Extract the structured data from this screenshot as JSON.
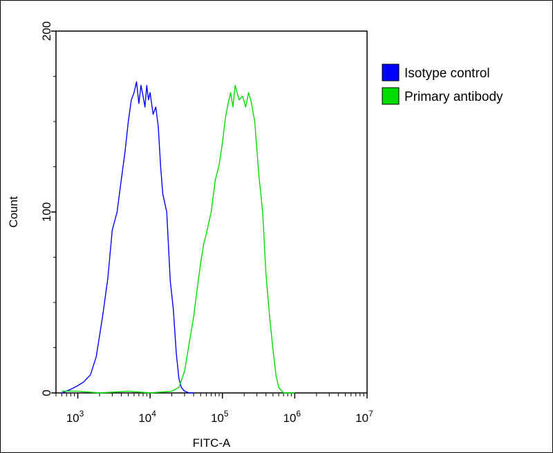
{
  "chart_data": {
    "type": "line",
    "title": "",
    "xlabel": "FITC-A",
    "ylabel": "Count",
    "x_scale": "log",
    "xlim": [
      500,
      10000000
    ],
    "ylim": [
      0,
      200
    ],
    "x_ticks": [
      {
        "value": 1000,
        "base": "10",
        "exp": "3"
      },
      {
        "value": 10000,
        "base": "10",
        "exp": "4"
      },
      {
        "value": 100000,
        "base": "10",
        "exp": "5"
      },
      {
        "value": 1000000,
        "base": "10",
        "exp": "6"
      },
      {
        "value": 10000000,
        "base": "10",
        "exp": "7"
      }
    ],
    "y_ticks": [
      {
        "value": 0,
        "label": "0"
      },
      {
        "value": 100,
        "label": "100"
      },
      {
        "value": 200,
        "label": "200"
      }
    ],
    "grid": false,
    "legend_position": "right",
    "series": [
      {
        "name": "Isotype control",
        "color": "#0000ff",
        "x": [
          600,
          800,
          1000,
          1200,
          1500,
          1800,
          2200,
          2600,
          3000,
          3500,
          4000,
          4500,
          5000,
          5500,
          6000,
          6500,
          7000,
          7500,
          8000,
          8500,
          9000,
          9500,
          10000,
          11000,
          12000,
          13000,
          14000,
          15000,
          17000,
          19000,
          21000,
          23000,
          25000,
          27000,
          30000,
          35000,
          40000
        ],
        "y": [
          0,
          2,
          4,
          6,
          10,
          20,
          42,
          63,
          90,
          100,
          118,
          133,
          150,
          162,
          166,
          172,
          160,
          170,
          164,
          158,
          170,
          162,
          166,
          154,
          158,
          147,
          125,
          110,
          100,
          62,
          46,
          22,
          8,
          3,
          1,
          0,
          0
        ]
      },
      {
        "name": "Primary antibody",
        "color": "#00dd00",
        "x": [
          600,
          1000,
          2000,
          5000,
          10000,
          20000,
          25000,
          30000,
          35000,
          40000,
          45000,
          50000,
          55000,
          60000,
          70000,
          80000,
          90000,
          100000,
          110000,
          120000,
          130000,
          140000,
          150000,
          170000,
          190000,
          210000,
          230000,
          250000,
          280000,
          320000,
          360000,
          400000,
          450000,
          500000,
          550000,
          600000,
          700000,
          1000000
        ],
        "y": [
          1,
          1,
          0,
          1,
          0,
          1,
          3,
          12,
          28,
          42,
          58,
          72,
          82,
          88,
          100,
          118,
          126,
          138,
          152,
          160,
          166,
          158,
          170,
          162,
          164,
          158,
          166,
          161,
          150,
          120,
          100,
          66,
          42,
          24,
          10,
          3,
          0,
          0
        ]
      }
    ]
  }
}
